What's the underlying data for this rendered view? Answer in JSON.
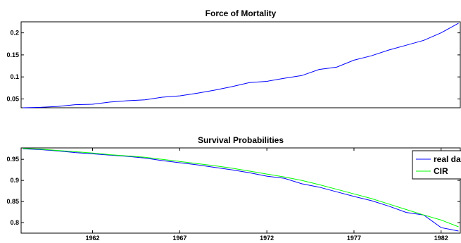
{
  "chart_data": [
    {
      "type": "line",
      "title": "Force of Mortality",
      "xlabel": "",
      "ylabel": "",
      "xlim": [
        1957.9,
        1983.1
      ],
      "ylim": [
        0.03,
        0.225
      ],
      "xticks": [],
      "yticks": [
        {
          "value": 0.05,
          "label": "0.05"
        },
        {
          "value": 0.1,
          "label": "0.1"
        },
        {
          "value": 0.15,
          "label": "0.15"
        },
        {
          "value": 0.2,
          "label": "0.2"
        }
      ],
      "grid": false,
      "series": [
        {
          "name": "",
          "color": "#0000ff",
          "x": [
            1958,
            1959,
            1960,
            1961,
            1962,
            1963,
            1964,
            1965,
            1966,
            1967,
            1968,
            1969,
            1970,
            1971,
            1972,
            1973,
            1974,
            1975,
            1976,
            1977,
            1978,
            1979,
            1980,
            1981,
            1982,
            1983
          ],
          "y": [
            0.03,
            0.031,
            0.033,
            0.037,
            0.038,
            0.043,
            0.046,
            0.048,
            0.054,
            0.057,
            0.063,
            0.07,
            0.078,
            0.087,
            0.09,
            0.097,
            0.103,
            0.117,
            0.122,
            0.138,
            0.148,
            0.161,
            0.172,
            0.183,
            0.2,
            0.222
          ]
        }
      ]
    },
    {
      "type": "line",
      "title": "Survival Probabilities",
      "xlabel": "",
      "ylabel": "",
      "xlim": [
        1957.9,
        1983.1
      ],
      "ylim": [
        0.775,
        0.977
      ],
      "xticks": [
        {
          "value": 1962,
          "label": "1962"
        },
        {
          "value": 1967,
          "label": "1967"
        },
        {
          "value": 1972,
          "label": "1972"
        },
        {
          "value": 1977,
          "label": "1977"
        },
        {
          "value": 1982,
          "label": "1982"
        }
      ],
      "yticks": [
        {
          "value": 0.8,
          "label": "0.8"
        },
        {
          "value": 0.85,
          "label": "0.85"
        },
        {
          "value": 0.9,
          "label": "0.9"
        },
        {
          "value": 0.95,
          "label": "0.95"
        }
      ],
      "grid": false,
      "legend": "top-right",
      "series": [
        {
          "name": "real data",
          "color": "#0000ff",
          "x": [
            1958,
            1959,
            1960,
            1961,
            1962,
            1963,
            1964,
            1965,
            1966,
            1967,
            1968,
            1969,
            1970,
            1971,
            1972,
            1973,
            1974,
            1975,
            1976,
            1977,
            1978,
            1979,
            1980,
            1981,
            1982,
            1983
          ],
          "y": [
            0.975,
            0.973,
            0.97,
            0.966,
            0.963,
            0.96,
            0.957,
            0.953,
            0.947,
            0.942,
            0.937,
            0.931,
            0.925,
            0.918,
            0.91,
            0.905,
            0.892,
            0.884,
            0.873,
            0.862,
            0.852,
            0.839,
            0.824,
            0.818,
            0.788,
            0.78
          ]
        },
        {
          "name": "CIR",
          "color": "#00ff00",
          "x": [
            1958,
            1959,
            1960,
            1961,
            1962,
            1963,
            1964,
            1965,
            1966,
            1967,
            1968,
            1969,
            1970,
            1971,
            1972,
            1973,
            1974,
            1975,
            1976,
            1977,
            1978,
            1979,
            1980,
            1981,
            1982,
            1983
          ],
          "y": [
            0.976,
            0.974,
            0.971,
            0.968,
            0.965,
            0.961,
            0.958,
            0.955,
            0.95,
            0.945,
            0.94,
            0.935,
            0.929,
            0.922,
            0.915,
            0.908,
            0.9,
            0.89,
            0.879,
            0.868,
            0.857,
            0.844,
            0.831,
            0.818,
            0.806,
            0.79
          ]
        }
      ]
    }
  ]
}
